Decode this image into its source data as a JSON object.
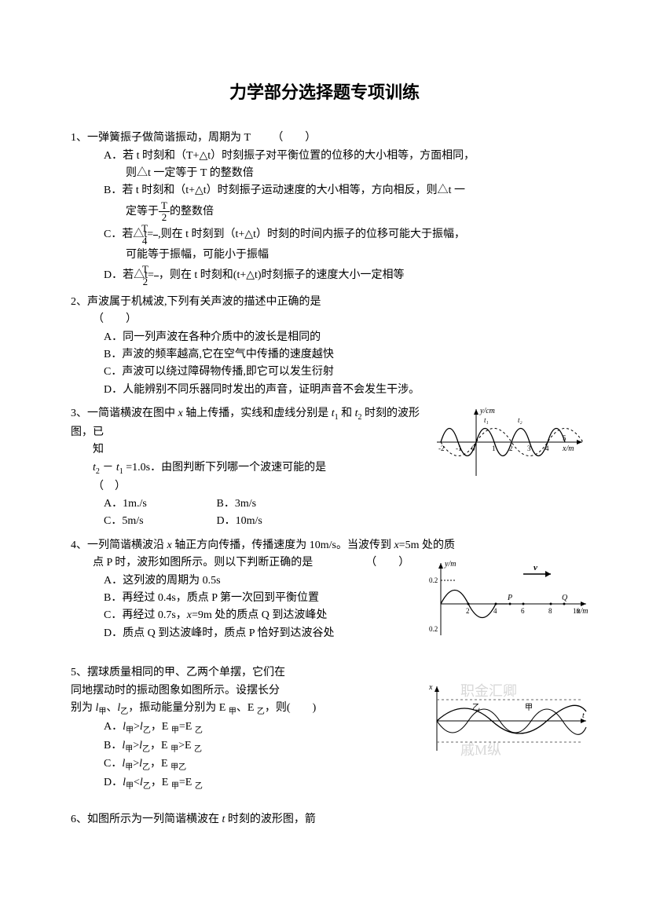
{
  "title": "力学部分选择题专项训练",
  "q1": {
    "stem": "1、一弹簧振子做简谐振动，周期为 T",
    "paren": "（　　）",
    "optA1": "A．若 t 时刻和（T+△t）时刻振子对平衡位置的位移的大小相等，方面相同，",
    "optA2": "则△t 一定等于 T 的整数倍",
    "optB1": "B．若 t 时刻和（t+△t）时刻振子运动速度的大小相等，方向相反，则△t 一",
    "optB2_pre": "定等于",
    "optB2_post": "的整数倍",
    "optC1_pre": "C．若△t=",
    "optC1_post": ",则在 t 时刻到（t+△t）时刻的时间内振子的位移可能大于振幅，",
    "optC2": "可能等于振幅，可能小于振幅",
    "optD_pre": "D．若△t=",
    "optD_post": "，则在 t 时刻和(t+△t)时刻振子的速度大小一定相等",
    "fracT2_num": "T",
    "fracT2_den": "2",
    "fracT4_num": "T",
    "fracT4_den": "4"
  },
  "q2": {
    "stem": "2、声波属于机械波,下列有关声波的描述中正确的是",
    "paren": "（　　）",
    "optA": "A．同一列声波在各种介质中的波长是相同的",
    "optB": "B．声波的频率越高,它在空气中传播的速度越快",
    "optC": "C．声波可以绕过障碍物传播,即它可以发生衍射",
    "optD": "D．人能辨别不同乐器同时发出的声音，证明声音不会发生干涉。"
  },
  "q3": {
    "stem1": "3、一简谐横波在图中 ",
    "stem1b": " 轴上传播，实线和虚线分别是 ",
    "stem1c": " 和 ",
    "stem1d": " 时刻的波形图，已",
    "stem1e": "知",
    "stem2a": " － ",
    "stem2b": " =1.0s．由图判断下列哪一个波速可能的是",
    "paren": "（　）",
    "optA": "A．1m./s",
    "optB": "B．3m/s",
    "optC": "C．5m/s",
    "optD": "D．10m/s",
    "t1": "t",
    "t1sub": "1",
    "t2": "t",
    "t2sub": "2",
    "x": "x",
    "graph": {
      "type": "wave",
      "xlim": [
        -2,
        5
      ],
      "ylim": [
        -1,
        1
      ],
      "y_label": "y/cm",
      "x_label": "x/m",
      "solid_label": "t",
      "solid_sub": "1",
      "dash_label": "t",
      "dash_sub": "2",
      "axis_color": "#000000",
      "solid_color": "#000000",
      "dash_color": "#000000",
      "x_ticks": [
        "-2",
        "-1",
        "0",
        "1",
        "2",
        "3",
        "4",
        "5"
      ]
    }
  },
  "q4": {
    "stem1a": "4、一列简谐横波沿 ",
    "stem1b": " 轴正方向传播，传播速度为 10m/s。当波传到 ",
    "stem1c": "=5m 处的质",
    "stem2": "点 P 时，波形如图所示。则以下判断正确的是",
    "paren": "（　　）",
    "x": "x",
    "optA": "A．这列波的周期为 0.5s",
    "optB": "B．再经过 0.4s，质点 P 第一次回到平衡位置",
    "optC_a": "C．再经过 0.7s，",
    "optC_b": "=9m 处的质点 Q 到达波峰处",
    "optD": "D．质点 Q 到达波峰时，质点 P 恰好到达波谷处",
    "graph": {
      "type": "wave",
      "y_label": "y/m",
      "x_label": "x/m",
      "y_ticks": [
        "0.2",
        "-0.2"
      ],
      "x_ticks": [
        "2",
        "4",
        "6",
        "8",
        "10"
      ],
      "p_label": "P",
      "q_label": "Q",
      "v_label": "v",
      "arrow_color": "#000000",
      "line_color": "#000000",
      "xlim": [
        0,
        10
      ],
      "ylim": [
        -0.2,
        0.2
      ]
    }
  },
  "q5": {
    "stem1": "5、摆球质量相同的甲、乙两个单摆，它们在",
    "stem2": "同地摆动时的振动图象如图所示。设摆长分",
    "stem3_a": "别为 ",
    "stem3_b": "、",
    "stem3_c": "，振动能量分别为 E ",
    "stem3_d": "、E ",
    "stem3_e": "，则(　　)",
    "l": "l",
    "jia": "甲",
    "yi": "乙",
    "optA_a": "A．",
    "optA_b": ">",
    "optA_c": "，E ",
    "optA_d": "=E ",
    "optB_a": "B．",
    "optB_b": ">",
    "optB_c": "，E ",
    "optB_d": ">E ",
    "optC_a": "C．",
    "optC_b": ">",
    "optC_c": "，E ",
    "optC_d": "<E ",
    "optD_a": "D．",
    "optD_b": "<",
    "optD_c": "，E ",
    "optD_d": "=E ",
    "graph": {
      "type": "wave-dual",
      "x_label": "x",
      "t_label": "t",
      "jia": "甲",
      "yi": "乙",
      "bg_text1": "职金汇卿",
      "bg_text2": "戚M纵",
      "line_color": "#000000",
      "dash_color": "#666666",
      "bg_color": "#d8d8d8"
    }
  },
  "q6": {
    "stem_a": "6、如图所示为一列简谐横波在 ",
    "stem_b": " 时刻的波形图，箭",
    "t": "t"
  }
}
